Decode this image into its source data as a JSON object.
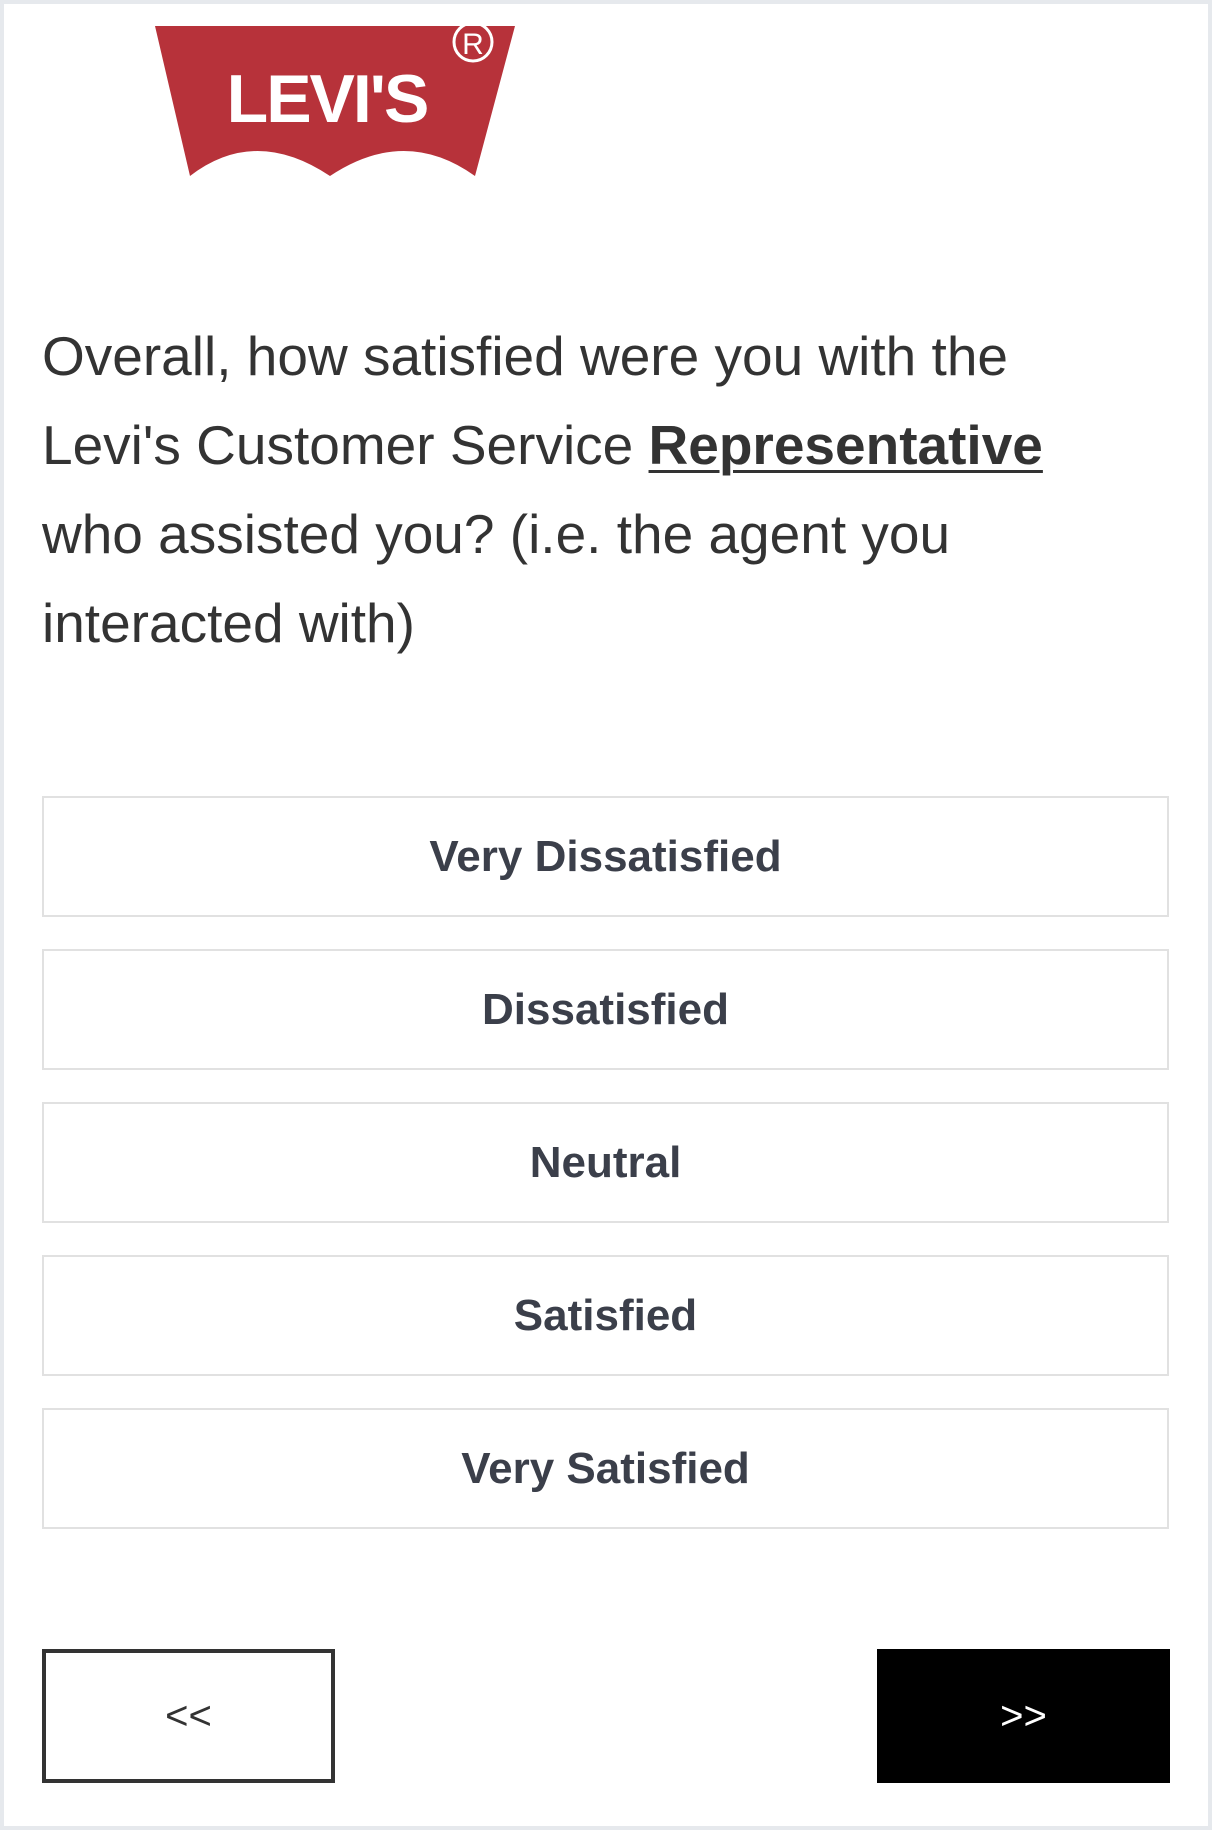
{
  "logo": {
    "text": "Levi's",
    "registered_mark": "R",
    "brand_color": "#b7323a"
  },
  "question": {
    "prefix": "Overall, how satisfied were you with the Levi's Customer Service ",
    "emphasis": "Representative",
    "suffix": " who assisted you? (i.e. the agent you interacted with)"
  },
  "options": [
    {
      "label": "Very Dissatisfied"
    },
    {
      "label": "Dissatisfied"
    },
    {
      "label": "Neutral"
    },
    {
      "label": "Satisfied"
    },
    {
      "label": "Very Satisfied"
    }
  ],
  "navigation": {
    "back_label": "<<",
    "next_label": ">>"
  }
}
